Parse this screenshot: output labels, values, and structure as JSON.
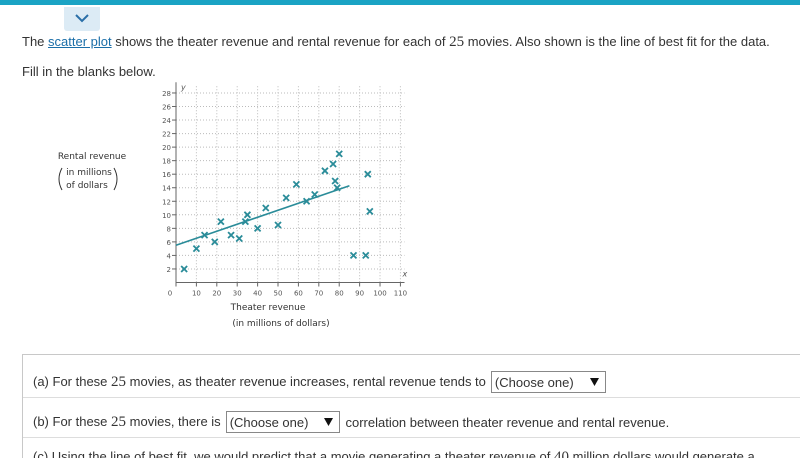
{
  "header": {
    "question_parts": [
      "The ",
      "scatter plot",
      " shows the theater revenue and rental revenue for each of ",
      "25",
      " movies. Also shown is the line of best fit for the data."
    ],
    "instruction": "Fill in the blanks below."
  },
  "chart_data": {
    "type": "scatter",
    "x_label": "Theater revenue",
    "x_label_units": "(in millions of dollars)",
    "y_label": "Rental revenue",
    "y_label_units": [
      "in millions",
      "of dollars"
    ],
    "x_axis_symbol": "x",
    "y_axis_symbol": "y",
    "xlim": [
      0,
      112
    ],
    "ylim": [
      0,
      29
    ],
    "xticks": [
      0,
      10,
      20,
      30,
      40,
      50,
      60,
      70,
      80,
      90,
      100,
      110
    ],
    "yticks": [
      2,
      4,
      6,
      8,
      10,
      12,
      14,
      16,
      18,
      20,
      22,
      24,
      26,
      28
    ],
    "grid": true,
    "marker": "x",
    "color": "#2a8c99",
    "x": [
      4,
      10,
      14,
      19,
      22,
      27,
      31,
      34,
      35,
      40,
      44,
      50,
      54,
      59,
      64,
      68,
      73,
      77,
      80,
      78,
      79,
      87,
      93,
      94,
      95
    ],
    "values": [
      2,
      5,
      7,
      6,
      9,
      7,
      6.5,
      9,
      10,
      8,
      11,
      8.5,
      12.5,
      14.5,
      12,
      13,
      16.5,
      17.5,
      19,
      15,
      14,
      4,
      4,
      16,
      10.5
    ],
    "best_fit": {
      "x": [
        0,
        85
      ],
      "values": [
        5.5,
        14.3
      ],
      "color": "#2a8c99"
    }
  },
  "questions": [
    {
      "parts": [
        "(a) For these ",
        "25",
        " movies, as theater revenue increases, rental revenue tends to"
      ],
      "dropdown": "(Choose one)",
      "after": ""
    },
    {
      "parts": [
        "(b) For these ",
        "25",
        " movies, there is"
      ],
      "dropdown": "(Choose one)",
      "after": "correlation between theater revenue and rental revenue."
    },
    {
      "parts": [
        "(c) Using the line of best fit, we would predict that a movie generating a theater revenue of ",
        "40",
        " million dollars would generate a"
      ],
      "dropdown": "",
      "after": ""
    }
  ]
}
